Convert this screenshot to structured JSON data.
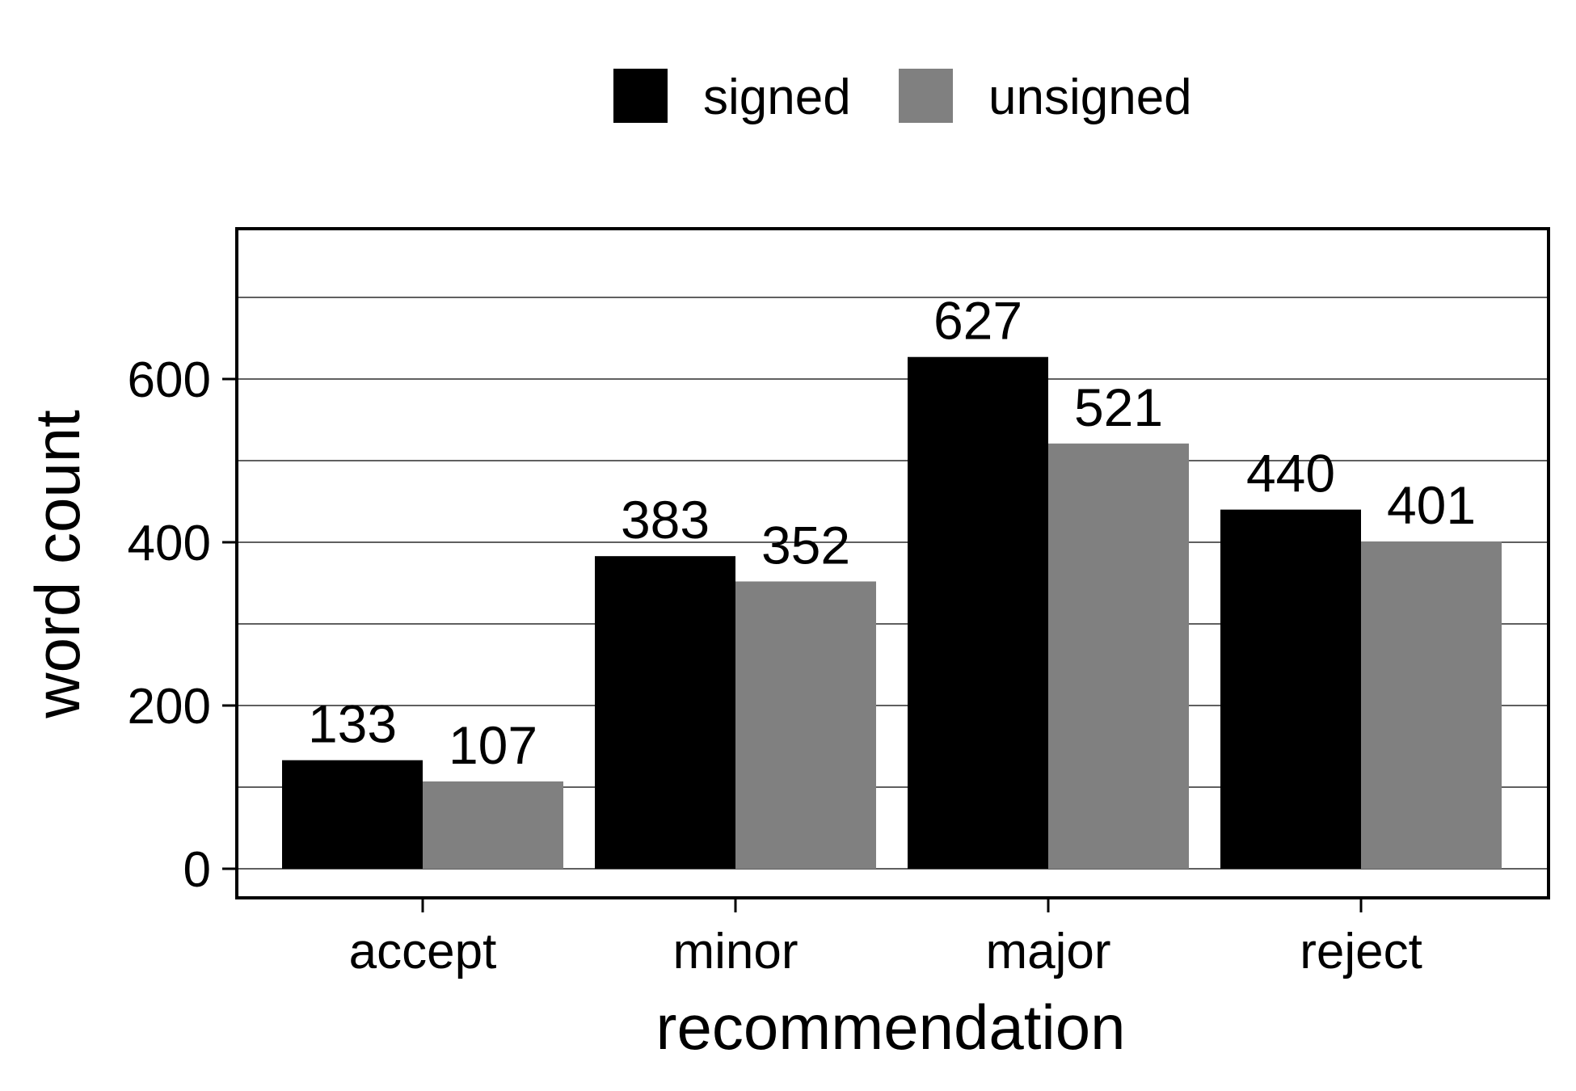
{
  "chart_data": {
    "type": "bar",
    "title": "",
    "xlabel": "recommendation",
    "ylabel": "word count",
    "categories": [
      "accept",
      "minor",
      "major",
      "reject"
    ],
    "series": [
      {
        "name": "signed",
        "values": [
          133,
          383,
          627,
          440
        ],
        "color": "#000000"
      },
      {
        "name": "unsigned",
        "values": [
          107,
          352,
          521,
          401
        ],
        "color": "#808080"
      }
    ],
    "ylim": [
      0,
      780
    ],
    "yticks": [
      0,
      200,
      400,
      600
    ],
    "grid": true,
    "gridlines": [
      100,
      200,
      300,
      400,
      500,
      600,
      700
    ],
    "legend_position": "top-center",
    "data_labels": true
  }
}
